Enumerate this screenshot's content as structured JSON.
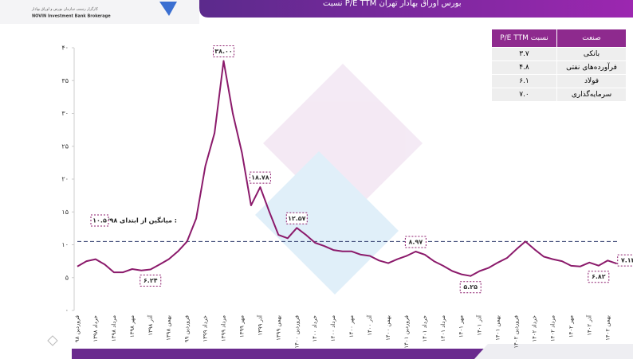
{
  "header": {
    "title": "نسبت P/E TTM بورس اوراق بهادار تهران",
    "logo_fa": "کارگزار رسمی سازمان بورس و اوراق بهادار",
    "logo_en": "NOVIN Investment Bank Brokerage"
  },
  "table": {
    "columns": [
      "صنعت",
      "نسبت P/E TTM"
    ],
    "rows": [
      [
        "بانکی",
        "۳.۷"
      ],
      [
        "فرآورده‌های نفتی",
        "۴.۸"
      ],
      [
        "فولاد",
        "۶.۱"
      ],
      [
        "سرمایه‌گذاری",
        "۷.۰"
      ]
    ]
  },
  "chart_data": {
    "type": "line",
    "color": "#8b1a6b",
    "categories": [
      "فروردین ۹۸",
      null,
      "خرداد ۱۳۹۸",
      null,
      "مرداد ۱۳۹۸",
      null,
      "مهر ۱۳۹۸",
      null,
      "آذر ۱۳۹۸",
      null,
      "بهمن ۱۳۹۸",
      null,
      "فروردین ۹۹",
      null,
      "خرداد ۱۳۹۹",
      null,
      "مرداد ۱۳۹۹",
      null,
      "مهر ۱۳۹۹",
      null,
      "آذر ۱۳۹۹",
      null,
      "بهمن ۱۳۹۹",
      null,
      "فروردین ۱۴۰۰",
      null,
      "خرداد ۱۴۰۰",
      null,
      "مرداد ۱۴۰۰",
      null,
      "مهر ۱۴۰۰",
      null,
      "آذر ۱۴۰۰",
      null,
      "بهمن ۱۴۰۰",
      null,
      "فروردین ۱۴۰۱",
      null,
      "خرداد ۱۴۰۱",
      null,
      "مرداد ۱۴۰۱",
      null,
      "مهر ۱۴۰۱",
      null,
      "آذر ۱۴۰۱",
      null,
      "بهمن ۱۴۰۱",
      null,
      "فروردین ۱۴۰۲",
      null,
      "خرداد ۱۴۰۲",
      null,
      "مرداد ۱۴۰۲",
      null,
      "مهر ۱۴۰۲",
      null,
      "آذر ۱۴۰۲",
      null,
      "بهمن ۱۴۰۲",
      null
    ],
    "values": [
      6.7,
      7.5,
      7.8,
      7.0,
      5.8,
      5.8,
      6.3,
      6.1,
      6.24,
      7.0,
      7.8,
      9.0,
      10.5,
      14,
      22,
      27,
      38.0,
      30,
      24,
      16,
      18.78,
      15,
      11.5,
      11,
      12.57,
      11.5,
      10.3,
      9.8,
      9.2,
      9.0,
      9.0,
      8.5,
      8.3,
      7.6,
      7.2,
      7.8,
      8.3,
      8.97,
      8.5,
      7.5,
      6.8,
      6.0,
      5.5,
      5.25,
      6.0,
      6.5,
      7.3,
      8.0,
      9.3,
      10.5,
      9.3,
      8.2,
      7.8,
      7.5,
      6.8,
      6.7,
      7.3,
      6.82,
      7.6,
      7.13
    ],
    "value_labels": [
      null,
      null,
      null,
      null,
      null,
      null,
      null,
      null,
      "۶.۲۴",
      null,
      null,
      null,
      null,
      null,
      null,
      null,
      "۳۸.۰۰",
      null,
      null,
      null,
      "۱۸.۷۸",
      null,
      null,
      null,
      "۱۲.۵۷",
      null,
      null,
      null,
      null,
      null,
      null,
      null,
      null,
      null,
      null,
      null,
      null,
      "۸.۹۷",
      null,
      null,
      null,
      null,
      null,
      "۵.۲۵",
      null,
      null,
      null,
      null,
      null,
      null,
      null,
      null,
      null,
      null,
      null,
      null,
      null,
      "۶.۸۲",
      null,
      "۷.۱۳"
    ],
    "mean": {
      "value": 10.5,
      "label": "۱۰.۵",
      "text": "میانگین از ابتدای ۱۳۹۸ :"
    },
    "ylim": [
      0,
      40
    ],
    "yticks": [
      {
        "value": 0,
        "label": "۰"
      },
      {
        "value": 5,
        "label": "۵"
      },
      {
        "value": 10,
        "label": "۱۰"
      },
      {
        "value": 15,
        "label": "۱۵"
      },
      {
        "value": 20,
        "label": "۲۰"
      },
      {
        "value": 25,
        "label": "۲۵"
      },
      {
        "value": 30,
        "label": "۳۰"
      },
      {
        "value": 35,
        "label": "۳۵"
      },
      {
        "value": 40,
        "label": "۴۰"
      }
    ]
  }
}
